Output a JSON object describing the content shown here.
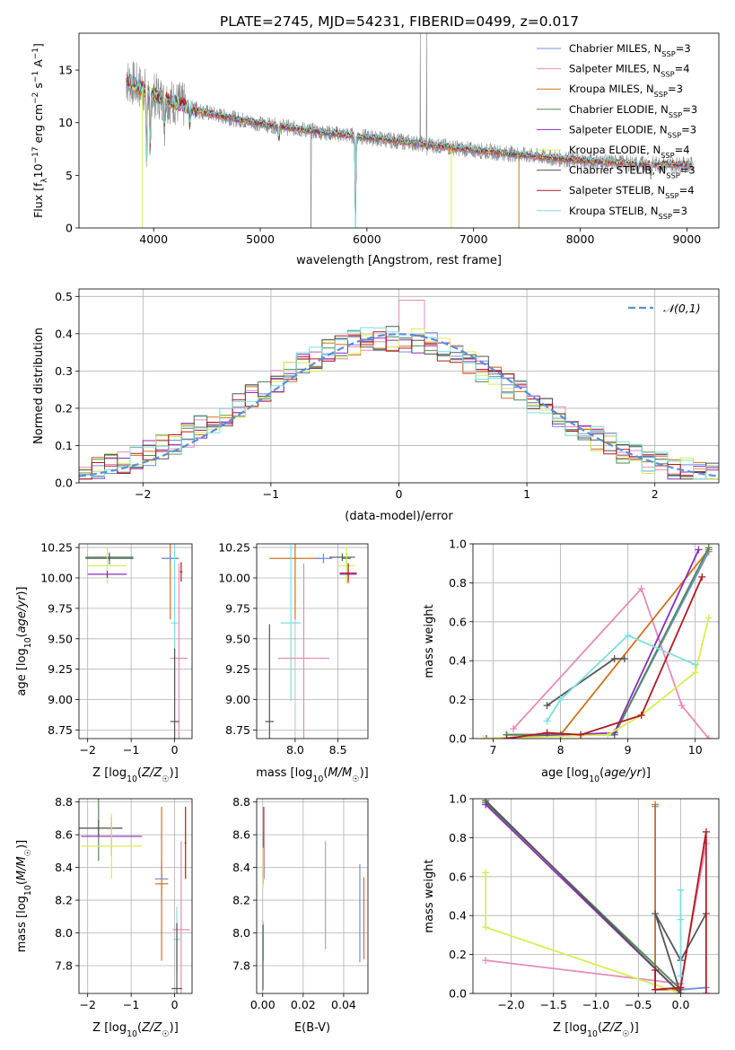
{
  "title": "PLATE=2745, MJD=54231, FIBERID=0499, z=0.017",
  "colors": {
    "Chabrier MILES": "#6f8fdc",
    "Salpeter MILES": "#e58cb8",
    "Kroupa MILES": "#d1711d",
    "Chabrier ELODIE": "#4e8a5a",
    "Salpeter ELODIE": "#8a2eb8",
    "Kroupa ELODIE": "#d9ec54",
    "Chabrier STELIB": "#555555",
    "Salpeter STELIB": "#b01a22",
    "Kroupa STELIB": "#7fdede",
    "data": "#888888",
    "normal": "#5b8fd6"
  },
  "chart_data": [
    {
      "id": "spectrum",
      "type": "line",
      "xlabel": "wavelength [Angstrom, rest frame]",
      "ylabel": "Flux [f_λ 10^-17 erg cm^-2 s^-1 A^-1]",
      "xlim": [
        3300,
        9300
      ],
      "ylim": [
        0,
        18.5
      ],
      "xticks": [
        4000,
        5000,
        6000,
        7000,
        8000,
        9000
      ],
      "yticks": [
        0,
        5,
        10,
        15
      ],
      "legend_position": "top-right",
      "series": [
        {
          "name": "Chabrier MILES",
          "nssp": "3"
        },
        {
          "name": "Salpeter MILES",
          "nssp": "4"
        },
        {
          "name": "Kroupa MILES",
          "nssp": "3"
        },
        {
          "name": "Chabrier ELODIE",
          "nssp": "3"
        },
        {
          "name": "Salpeter ELODIE",
          "nssp": "3"
        },
        {
          "name": "Kroupa ELODIE",
          "nssp": "4"
        },
        {
          "name": "Chabrier STELIB",
          "nssp": "3"
        },
        {
          "name": "Salpeter STELIB",
          "nssp": "4"
        },
        {
          "name": "Kroupa STELIB",
          "nssp": "3"
        }
      ],
      "continuum": {
        "x": [
          3750,
          3850,
          4000,
          4200,
          4400,
          4600,
          5000,
          5500,
          6000,
          6500,
          7000,
          7500,
          8000,
          8500,
          9000
        ],
        "y": [
          14.0,
          13.5,
          12.6,
          11.9,
          11.2,
          10.7,
          9.9,
          9.2,
          8.6,
          8.0,
          7.4,
          6.9,
          6.4,
          6.1,
          6.0
        ]
      },
      "absorption_lines": [
        {
          "x": 3934,
          "y": 5.5
        },
        {
          "x": 3968,
          "y": 7.0
        },
        {
          "x": 4101,
          "y": 9.5
        },
        {
          "x": 4340,
          "y": 9.8
        },
        {
          "x": 5175,
          "y": 8.2
        },
        {
          "x": 5893,
          "y": 0
        },
        {
          "x": 6563,
          "y": 7.5
        },
        {
          "x": 8542,
          "y": 5.5
        },
        {
          "x": 8662,
          "y": 4.8
        }
      ],
      "model_dropouts": [
        {
          "x": 3895,
          "series": "Kroupa ELODIE",
          "y": 0
        },
        {
          "x": 5893,
          "series": "Kroupa STELIB",
          "y": 0
        },
        {
          "x": 6790,
          "series": "Kroupa ELODIE",
          "y": 0
        },
        {
          "x": 7425,
          "series": "Kroupa MILES",
          "y": 0
        }
      ],
      "data_spikes": [
        {
          "x": 5475,
          "y": 0
        },
        {
          "x": 6500,
          "y": 18.5
        },
        {
          "x": 6560,
          "y": 18.5
        }
      ]
    },
    {
      "id": "residuals",
      "type": "histogram",
      "xlabel": "(data-model)/error",
      "ylabel": "Normed distribution",
      "xlim": [
        -2.5,
        2.5
      ],
      "ylim": [
        0,
        0.52
      ],
      "xticks": [
        -2,
        -1,
        0,
        1,
        2
      ],
      "yticks": [
        0.0,
        0.1,
        0.2,
        0.3,
        0.4,
        0.5
      ],
      "bin_width": 0.1,
      "bin_start": -2.5,
      "reference_curve": {
        "name": "𝒩(0,1)",
        "mean": 0,
        "sigma": 1
      },
      "legend_position": "top-right"
    },
    {
      "id": "age-vs-Z",
      "type": "errorbar",
      "xlabel": "Z [log10(Z/Z☉)]",
      "ylabel": "age  [log10(age/yr)]",
      "xlim": [
        -2.2,
        0.4
      ],
      "ylim": [
        8.68,
        10.28
      ],
      "xticks": [
        -2,
        -1,
        0
      ],
      "yticks": [
        8.75,
        9.0,
        9.25,
        9.5,
        9.75,
        10.0,
        10.25
      ],
      "points": [
        {
          "series": "Chabrier ELODIE",
          "x": -1.5,
          "xerr": 0.55,
          "y": 10.16,
          "yerr": 0.05
        },
        {
          "series": "Chabrier STELIB",
          "x": -1.5,
          "xerr": 0.55,
          "y": 10.17,
          "yerr": 0.03
        },
        {
          "series": "Kroupa ELODIE",
          "x": -1.55,
          "xerr": 0.45,
          "y": 10.1,
          "yerr": 0.15
        },
        {
          "series": "Salpeter ELODIE",
          "x": -1.55,
          "xerr": 0.45,
          "y": 10.03,
          "yerr": 0.03
        },
        {
          "series": "Kroupa MILES",
          "x": -0.1,
          "xerr": 0.2,
          "y": 10.16,
          "yerr": 0.5
        },
        {
          "series": "Chabrier MILES",
          "x": -0.1,
          "xerr": 0.2,
          "y": 10.16,
          "yerr": 0.04
        },
        {
          "series": "Salpeter STELIB",
          "x": 0.15,
          "xerr": 0.03,
          "y": 10.05,
          "yerr": 0.08
        },
        {
          "series": "Salpeter MILES",
          "x": 0.1,
          "xerr": 0.2,
          "y": 9.34,
          "yerr": 0.78
        },
        {
          "series": "Kroupa STELIB",
          "x": 0.0,
          "xerr": 0.08,
          "y": 9.63,
          "yerr": 0.64
        },
        {
          "series": "Chabrier STELIB",
          "x": 0.0,
          "xerr": 0.1,
          "y": 8.82,
          "yerr": 0.6
        }
      ]
    },
    {
      "id": "age-vs-mass",
      "type": "errorbar",
      "xlabel": "mass [log10(M/M☉)]",
      "ylabel": "",
      "xlim": [
        7.55,
        8.85
      ],
      "ylim": [
        8.68,
        10.28
      ],
      "xticks": [
        8.0,
        8.5
      ],
      "yticks": [
        8.75,
        9.0,
        9.25,
        9.5,
        9.75,
        10.0,
        10.25
      ],
      "points": [
        {
          "series": "Kroupa MILES",
          "x": 8.0,
          "xerr": 0.3,
          "y": 10.16,
          "yerr": 0.5
        },
        {
          "series": "Chabrier MILES",
          "x": 8.33,
          "xerr": 0.1,
          "y": 10.16,
          "yerr": 0.04
        },
        {
          "series": "Chabrier ELODIE",
          "x": 8.6,
          "xerr": 0.05,
          "y": 10.16,
          "yerr": 0.05
        },
        {
          "series": "Chabrier STELIB",
          "x": 8.55,
          "xerr": 0.15,
          "y": 10.17,
          "yerr": 0.03
        },
        {
          "series": "Kroupa ELODIE",
          "x": 8.6,
          "xerr": 0.1,
          "y": 10.1,
          "yerr": 0.15
        },
        {
          "series": "Salpeter ELODIE",
          "x": 8.62,
          "xerr": 0.1,
          "y": 10.03,
          "yerr": 0.03
        },
        {
          "series": "Salpeter STELIB",
          "x": 8.62,
          "xerr": 0.1,
          "y": 10.04,
          "yerr": 0.08
        },
        {
          "series": "Kroupa STELIB",
          "x": 7.95,
          "xerr": 0.12,
          "y": 9.63,
          "yerr": 0.64
        },
        {
          "series": "Salpeter MILES",
          "x": 8.1,
          "xerr": 0.3,
          "y": 9.34,
          "yerr": 0.78
        },
        {
          "series": "Chabrier STELIB",
          "x": 7.7,
          "xerr": 0.05,
          "y": 8.82,
          "yerr": 0.8
        }
      ]
    },
    {
      "id": "mass-weight-vs-age",
      "type": "line",
      "xlabel": "age  [log10(age/yr)]",
      "ylabel": "mass weight",
      "xlim": [
        6.7,
        10.35
      ],
      "ylim": [
        0,
        1
      ],
      "xticks": [
        7,
        8,
        9,
        10
      ],
      "yticks": [
        0.0,
        0.2,
        0.4,
        0.6,
        0.8,
        1.0
      ],
      "series": [
        {
          "name": "Chabrier MILES",
          "x": [
            7.2,
            8.0,
            8.8,
            10.2
          ],
          "y": [
            0.02,
            0.02,
            0.02,
            0.96
          ]
        },
        {
          "name": "Salpeter MILES",
          "x": [
            7.3,
            9.2,
            9.8,
            10.2
          ],
          "y": [
            0.05,
            0.77,
            0.17,
            0.0
          ]
        },
        {
          "name": "Kroupa MILES",
          "x": [
            7.2,
            8.0,
            10.2
          ],
          "y": [
            0.02,
            0.02,
            0.97
          ]
        },
        {
          "name": "Chabrier ELODIE",
          "x": [
            7.2,
            8.0,
            8.8,
            10.2
          ],
          "y": [
            0.02,
            0.02,
            0.02,
            0.98
          ]
        },
        {
          "name": "Salpeter ELODIE",
          "x": [
            6.9,
            8.8,
            10.05
          ],
          "y": [
            0.0,
            0.03,
            0.97
          ]
        },
        {
          "name": "Kroupa ELODIE",
          "x": [
            6.85,
            8.7,
            9.2,
            10.0,
            10.2
          ],
          "y": [
            0.0,
            0.02,
            0.12,
            0.34,
            0.62
          ]
        },
        {
          "name": "Chabrier STELIB",
          "x": [
            7.8,
            8.8,
            8.95
          ],
          "y": [
            0.17,
            0.41,
            0.41
          ]
        },
        {
          "name": "Salpeter STELIB",
          "x": [
            7.2,
            7.8,
            8.3,
            9.2,
            10.1
          ],
          "y": [
            0.0,
            0.03,
            0.02,
            0.12,
            0.83
          ]
        },
        {
          "name": "Kroupa STELIB",
          "x": [
            7.8,
            8.0,
            9.0,
            10.0
          ],
          "y": [
            0.09,
            0.2,
            0.53,
            0.38
          ]
        }
      ]
    },
    {
      "id": "mass-vs-Z",
      "type": "errorbar",
      "xlabel": "Z [log10(Z/Z☉)]",
      "ylabel": "mass [log10(M/M☉)]",
      "xlim": [
        -2.2,
        0.4
      ],
      "ylim": [
        7.63,
        8.82
      ],
      "xticks": [
        -2,
        -1,
        0
      ],
      "yticks": [
        7.8,
        8.0,
        8.2,
        8.4,
        8.6,
        8.8
      ],
      "points": [
        {
          "series": "Chabrier ELODIE",
          "x": -1.75,
          "xerr": 0.55,
          "y": 8.64,
          "yerr": 0.2
        },
        {
          "series": "Chabrier STELIB",
          "x": -1.75,
          "xerr": 0.55,
          "y": 8.64,
          "yerr": 0.05
        },
        {
          "series": "Salpeter ELODIE",
          "x": -1.45,
          "xerr": 0.7,
          "y": 8.59,
          "yerr": 0.12
        },
        {
          "series": "Kroupa ELODIE",
          "x": -1.45,
          "xerr": 0.7,
          "y": 8.53,
          "yerr": 0.2
        },
        {
          "series": "Chabrier MILES",
          "x": -0.3,
          "xerr": 0.15,
          "y": 8.33,
          "yerr": 0.1
        },
        {
          "series": "Kroupa MILES",
          "x": -0.3,
          "xerr": 0.15,
          "y": 8.3,
          "yerr": 0.47
        },
        {
          "series": "Salpeter MILES",
          "x": 0.15,
          "xerr": 0.2,
          "y": 8.02,
          "yerr": 0.54
        },
        {
          "series": "Salpeter STELIB",
          "x": 0.25,
          "xerr": 0.02,
          "y": 8.55,
          "yerr": 0.22
        },
        {
          "series": "Kroupa STELIB",
          "x": 0.05,
          "xerr": 0.08,
          "y": 7.96,
          "yerr": 0.2
        },
        {
          "series": "Chabrier STELIB",
          "x": 0.05,
          "xerr": 0.12,
          "y": 7.66,
          "yerr": 0.4
        }
      ]
    },
    {
      "id": "mass-vs-EBV",
      "type": "errorbar",
      "xlabel": "E(B-V)",
      "ylabel": "",
      "xlim": [
        -0.003,
        0.052
      ],
      "ylim": [
        7.63,
        8.82
      ],
      "xticks": [
        0.0,
        0.02,
        0.04
      ],
      "xticklabels": [
        "0.00",
        "0.02",
        "0.04"
      ],
      "yticks": [
        7.8,
        8.0,
        8.2,
        8.4,
        8.6,
        8.8
      ],
      "points": [
        {
          "series": "Salpeter STELIB",
          "x": 0.0005,
          "y": 8.55,
          "yerr": 0.22
        },
        {
          "series": "Chabrier ELODIE",
          "x": 0.0003,
          "y": 8.45,
          "yerr": 0.15
        },
        {
          "series": "Kroupa ELODIE",
          "x": 0.0002,
          "y": 8.4,
          "yerr": 0.12
        },
        {
          "series": "Kroupa STELIB",
          "x": 0.0003,
          "y": 7.95,
          "yerr": 0.12
        },
        {
          "series": "Chabrier STELIB",
          "x": 0.0001,
          "y": 7.85,
          "yerr": 0.2
        },
        {
          "series": "Salpeter MILES",
          "x": 0.031,
          "y": 8.23,
          "yerr": 0.33
        },
        {
          "series": "Chabrier MILES",
          "x": 0.048,
          "y": 8.12,
          "yerr": 0.3
        },
        {
          "series": "Kroupa MILES",
          "x": 0.05,
          "y": 8.09,
          "yerr": 0.25
        }
      ]
    },
    {
      "id": "mass-weight-vs-Z",
      "type": "line",
      "xlabel": "Z [log10(Z/Z☉)]",
      "ylabel": "mass weight",
      "xlim": [
        -2.45,
        0.45
      ],
      "ylim": [
        0,
        1
      ],
      "xticks": [
        -2.0,
        -1.5,
        -1.0,
        -0.5,
        0.0
      ],
      "yticks": [
        0.0,
        0.2,
        0.4,
        0.6,
        0.8,
        1.0
      ],
      "series": [
        {
          "name": "Chabrier MILES",
          "x": [
            -0.3,
            -0.3,
            0.0,
            0.3
          ],
          "y": [
            0.96,
            0.02,
            0.02,
            0.03
          ]
        },
        {
          "name": "Salpeter MILES",
          "x": [
            -2.3,
            0.0,
            0.3
          ],
          "y": [
            0.17,
            0.05,
            0.77
          ]
        },
        {
          "name": "Kroupa MILES",
          "x": [
            -0.3,
            -0.3,
            0.0
          ],
          "y": [
            0.97,
            0.02,
            0.02
          ]
        },
        {
          "name": "Chabrier ELODIE",
          "x": [
            -2.3,
            0.0
          ],
          "y": [
            0.98,
            0.02
          ]
        },
        {
          "name": "Salpeter ELODIE",
          "x": [
            -2.3,
            0.0,
            0.0
          ],
          "y": [
            0.97,
            0.0,
            0.03
          ]
        },
        {
          "name": "Kroupa ELODIE",
          "x": [
            -2.3,
            -2.3,
            0.0
          ],
          "y": [
            0.62,
            0.34,
            0.0
          ]
        },
        {
          "name": "Chabrier STELIB",
          "x": [
            -2.3,
            0.0,
            -0.3,
            0.0,
            0.3
          ],
          "y": [
            0.99,
            0.0,
            0.41,
            0.17,
            0.41
          ]
        },
        {
          "name": "Salpeter STELIB",
          "x": [
            -0.3,
            -0.3,
            0.0,
            0.3,
            0.3
          ],
          "y": [
            0.12,
            0.02,
            0.03,
            0.83,
            0.0
          ]
        },
        {
          "name": "Kroupa STELIB",
          "x": [
            0.0,
            0.0,
            0.0
          ],
          "y": [
            0.53,
            0.38,
            0.09
          ]
        }
      ]
    }
  ]
}
